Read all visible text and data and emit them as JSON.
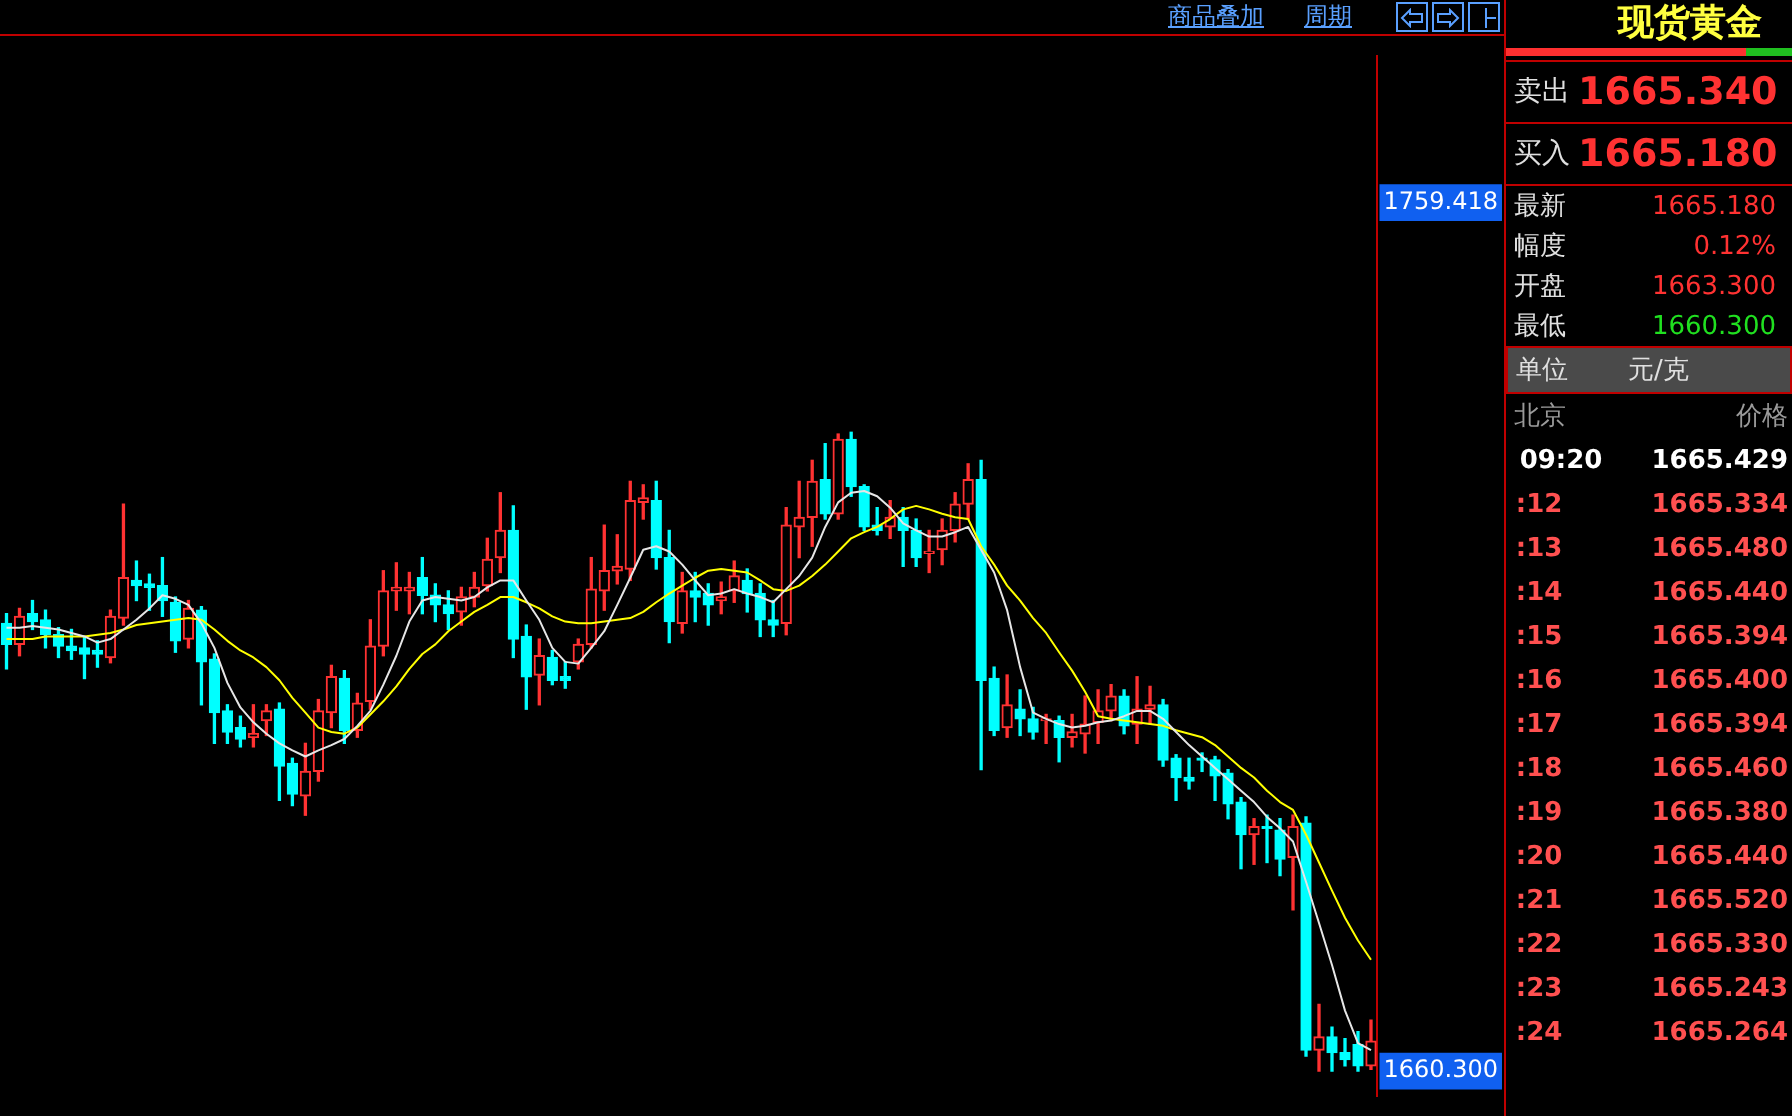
{
  "chart_data": [
    {
      "type": "candlestick",
      "marker": "none",
      "annotations": [
        "商品叠加",
        "周期"
      ],
      "categories": [
        null,
        null,
        null,
        null,
        null,
        null,
        null,
        null,
        null,
        null,
        null,
        null,
        null,
        null,
        null,
        null,
        null,
        null,
        null,
        null,
        null,
        null,
        null,
        null,
        null,
        null,
        null,
        null,
        null,
        null,
        null,
        null,
        null,
        null,
        null,
        null,
        null,
        null,
        null,
        null,
        null,
        null,
        null,
        null,
        null,
        null,
        null,
        null,
        null,
        null,
        null,
        null,
        null,
        null,
        null,
        null,
        null,
        null,
        null,
        null,
        null,
        null,
        null,
        null,
        null,
        null,
        null,
        null,
        null,
        null,
        null,
        null,
        null,
        null,
        null,
        null,
        null,
        null,
        null,
        null,
        null,
        null,
        null,
        null,
        null,
        null,
        null,
        null,
        null,
        null,
        null,
        null,
        null,
        null,
        null,
        null,
        null,
        null,
        null,
        null,
        null,
        null,
        null,
        null,
        null,
        null
      ],
      "ohlc": [
        [
          1711.4,
          1712.5,
          1706.2,
          1709.0
        ],
        [
          1709.0,
          1713.1,
          1707.7,
          1712.2
        ],
        [
          1712.5,
          1714.0,
          1710.7,
          1711.6
        ],
        [
          1711.8,
          1712.9,
          1708.6,
          1710.1
        ],
        [
          1710.1,
          1710.9,
          1707.5,
          1708.8
        ],
        [
          1708.8,
          1710.7,
          1707.3,
          1708.3
        ],
        [
          1708.6,
          1709.9,
          1705.1,
          1707.9
        ],
        [
          1708.3,
          1709.4,
          1706.4,
          1707.9
        ],
        [
          1707.5,
          1712.9,
          1706.9,
          1712.2
        ],
        [
          1712.0,
          1725.0,
          1711.2,
          1716.6
        ],
        [
          1716.3,
          1718.5,
          1714.0,
          1715.7
        ],
        [
          1715.9,
          1717.0,
          1712.9,
          1715.5
        ],
        [
          1715.7,
          1718.9,
          1712.2,
          1714.0
        ],
        [
          1713.8,
          1714.4,
          1708.1,
          1709.4
        ],
        [
          1709.6,
          1714.0,
          1708.6,
          1713.1
        ],
        [
          1712.9,
          1713.3,
          1702.1,
          1707.0
        ],
        [
          1707.3,
          1707.9,
          1697.7,
          1701.2
        ],
        [
          1701.4,
          1702.1,
          1697.7,
          1699.0
        ],
        [
          1699.5,
          1700.8,
          1697.3,
          1698.2
        ],
        [
          1698.4,
          1702.1,
          1697.3,
          1698.8
        ],
        [
          1700.3,
          1702.1,
          1698.6,
          1701.4
        ],
        [
          1701.6,
          1702.3,
          1691.2,
          1695.1
        ],
        [
          1695.4,
          1696.0,
          1690.6,
          1691.9
        ],
        [
          1691.7,
          1697.7,
          1689.5,
          1694.5
        ],
        [
          1694.5,
          1702.7,
          1693.4,
          1701.4
        ],
        [
          1701.2,
          1706.6,
          1699.5,
          1705.3
        ],
        [
          1705.1,
          1706.0,
          1697.7,
          1699.2
        ],
        [
          1699.2,
          1703.4,
          1698.4,
          1702.3
        ],
        [
          1702.5,
          1711.8,
          1701.6,
          1708.8
        ],
        [
          1708.8,
          1717.4,
          1707.7,
          1715.1
        ],
        [
          1715.1,
          1718.3,
          1712.9,
          1715.5
        ],
        [
          1715.1,
          1717.2,
          1712.5,
          1715.5
        ],
        [
          1716.6,
          1718.9,
          1712.5,
          1714.6
        ],
        [
          1714.6,
          1715.9,
          1711.6,
          1713.5
        ],
        [
          1713.5,
          1715.1,
          1710.7,
          1712.5
        ],
        [
          1712.7,
          1715.5,
          1711.2,
          1714.4
        ],
        [
          1714.4,
          1717.2,
          1713.3,
          1715.5
        ],
        [
          1715.7,
          1721.1,
          1715.1,
          1718.7
        ],
        [
          1718.9,
          1726.3,
          1717.2,
          1722.0
        ],
        [
          1722.0,
          1724.8,
          1707.5,
          1709.6
        ],
        [
          1709.9,
          1711.2,
          1701.6,
          1705.3
        ],
        [
          1705.5,
          1709.6,
          1702.1,
          1707.7
        ],
        [
          1707.5,
          1708.3,
          1704.4,
          1704.9
        ],
        [
          1705.3,
          1707.0,
          1704.0,
          1704.9
        ],
        [
          1707.0,
          1709.6,
          1706.2,
          1709.0
        ],
        [
          1709.0,
          1718.9,
          1708.6,
          1715.3
        ],
        [
          1715.1,
          1722.6,
          1712.9,
          1717.4
        ],
        [
          1717.4,
          1721.5,
          1715.9,
          1717.9
        ],
        [
          1717.6,
          1727.6,
          1716.3,
          1725.4
        ],
        [
          1725.2,
          1727.2,
          1723.3,
          1725.7
        ],
        [
          1725.4,
          1727.6,
          1717.6,
          1718.9
        ],
        [
          1718.9,
          1722.0,
          1709.2,
          1711.6
        ],
        [
          1711.4,
          1717.2,
          1710.3,
          1715.1
        ],
        [
          1715.1,
          1717.2,
          1711.6,
          1714.4
        ],
        [
          1714.8,
          1715.9,
          1711.2,
          1713.5
        ],
        [
          1714.0,
          1716.1,
          1712.5,
          1714.4
        ],
        [
          1715.1,
          1718.5,
          1713.8,
          1716.8
        ],
        [
          1716.3,
          1717.6,
          1712.7,
          1714.8
        ],
        [
          1714.8,
          1715.9,
          1709.9,
          1711.8
        ],
        [
          1711.8,
          1714.0,
          1709.9,
          1711.2
        ],
        [
          1711.4,
          1724.6,
          1710.1,
          1722.6
        ],
        [
          1722.4,
          1727.6,
          1718.9,
          1723.5
        ],
        [
          1723.5,
          1730.0,
          1720.2,
          1727.6
        ],
        [
          1727.8,
          1731.9,
          1723.3,
          1723.9
        ],
        [
          1723.9,
          1733.0,
          1723.3,
          1732.4
        ],
        [
          1732.4,
          1733.2,
          1725.9,
          1727.0
        ],
        [
          1727.0,
          1727.2,
          1722.0,
          1722.4
        ],
        [
          1722.6,
          1724.6,
          1721.5,
          1722.0
        ],
        [
          1722.4,
          1725.4,
          1721.1,
          1723.5
        ],
        [
          1723.5,
          1724.6,
          1717.9,
          1722.0
        ],
        [
          1722.0,
          1723.3,
          1717.9,
          1718.9
        ],
        [
          1719.4,
          1722.0,
          1717.2,
          1719.6
        ],
        [
          1719.8,
          1723.3,
          1718.1,
          1722.0
        ],
        [
          1722.0,
          1726.3,
          1720.7,
          1725.0
        ],
        [
          1725.0,
          1729.6,
          1723.3,
          1727.8
        ],
        [
          1727.8,
          1730.0,
          1694.7,
          1704.9
        ],
        [
          1705.1,
          1706.4,
          1698.6,
          1699.2
        ],
        [
          1699.5,
          1705.5,
          1698.4,
          1702.1
        ],
        [
          1701.6,
          1703.8,
          1698.6,
          1700.5
        ],
        [
          1700.5,
          1701.8,
          1698.2,
          1699.0
        ],
        [
          1700.3,
          1701.0,
          1697.7,
          1700.5
        ],
        [
          1700.3,
          1700.8,
          1695.6,
          1698.4
        ],
        [
          1698.4,
          1701.0,
          1697.3,
          1699.0
        ],
        [
          1698.8,
          1703.1,
          1696.6,
          1699.9
        ],
        [
          1700.1,
          1703.8,
          1697.7,
          1701.4
        ],
        [
          1701.4,
          1704.4,
          1700.3,
          1703.1
        ],
        [
          1703.1,
          1703.8,
          1698.8,
          1699.7
        ],
        [
          1699.9,
          1705.3,
          1697.7,
          1701.6
        ],
        [
          1701.6,
          1704.2,
          1699.9,
          1702.1
        ],
        [
          1702.1,
          1702.7,
          1695.1,
          1695.8
        ],
        [
          1696.0,
          1696.4,
          1691.2,
          1693.8
        ],
        [
          1693.8,
          1696.0,
          1692.5,
          1693.4
        ],
        [
          1696.0,
          1696.6,
          1694.5,
          1695.8
        ],
        [
          1695.8,
          1696.2,
          1691.2,
          1694.0
        ],
        [
          1694.3,
          1694.7,
          1689.1,
          1690.8
        ],
        [
          1691.0,
          1691.5,
          1683.4,
          1687.3
        ],
        [
          1687.3,
          1689.1,
          1683.9,
          1688.2
        ],
        [
          1688.2,
          1689.5,
          1684.1,
          1688.0
        ],
        [
          1687.8,
          1689.1,
          1682.6,
          1684.5
        ],
        [
          1684.7,
          1689.5,
          1678.7,
          1688.2
        ],
        [
          1688.6,
          1689.3,
          1662.0,
          1662.7
        ],
        [
          1662.7,
          1667.9,
          1660.3,
          1664.2
        ],
        [
          1664.2,
          1665.3,
          1660.3,
          1662.4
        ],
        [
          1662.4,
          1664.0,
          1660.9,
          1661.6
        ],
        [
          1663.3,
          1664.8,
          1660.3,
          1660.9
        ],
        [
          1660.9,
          1666.1,
          1660.5,
          1663.7
        ]
      ],
      "colors": [
        "#00ffff",
        "#ff3232",
        "#00ffff",
        "#00ffff",
        "#00ffff",
        "#00ffff",
        "#00ffff",
        "#00ffff",
        "#ff3232",
        "#ff3232",
        "#00ffff",
        "#00ffff",
        "#00ffff",
        "#00ffff",
        "#ff3232",
        "#00ffff",
        "#00ffff",
        "#00ffff",
        "#00ffff",
        "#ff3232",
        "#ff3232",
        "#00ffff",
        "#00ffff",
        "#ff3232",
        "#ff3232",
        "#ff3232",
        "#00ffff",
        "#ff3232",
        "#ff3232",
        "#ff3232",
        "#ff3232",
        "#ff3232",
        "#00ffff",
        "#00ffff",
        "#00ffff",
        "#ff3232",
        "#ff3232",
        "#ff3232",
        "#ff3232",
        "#00ffff",
        "#00ffff",
        "#ff3232",
        "#00ffff",
        "#00ffff",
        "#ff3232",
        "#ff3232",
        "#ff3232",
        "#ff3232",
        "#ff3232",
        "#ff3232",
        "#00ffff",
        "#00ffff",
        "#ff3232",
        "#00ffff",
        "#00ffff",
        "#ff3232",
        "#ff3232",
        "#00ffff",
        "#00ffff",
        "#00ffff",
        "#ff3232",
        "#ff3232",
        "#ff3232",
        "#00ffff",
        "#ff3232",
        "#00ffff",
        "#00ffff",
        "#00ffff",
        "#ff3232",
        "#00ffff",
        "#00ffff",
        "#ff3232",
        "#ff3232",
        "#ff3232",
        "#ff3232",
        "#00ffff",
        "#00ffff",
        "#ff3232",
        "#00ffff",
        "#00ffff",
        "#ff3232",
        "#00ffff",
        "#ff3232",
        "#ff3232",
        "#ff3232",
        "#ff3232",
        "#00ffff",
        "#ff3232",
        "#ff3232",
        "#00ffff",
        "#00ffff",
        "#00ffff",
        "#00ffff",
        "#00ffff",
        "#00ffff",
        "#00ffff",
        "#ff3232",
        "#00ffff",
        "#00ffff",
        "#ff3232",
        "#00ffff",
        "#ff3232",
        "#00ffff",
        "#00ffff",
        "#00ffff",
        "#ff3232"
      ],
      "series": [
        {
          "type": "line",
          "color": "#e6e6e6",
          "values": [
            1710.9,
            1710.9,
            1711.1,
            1710.9,
            1710.7,
            1710.3,
            1709.9,
            1709.2,
            1709.6,
            1710.7,
            1711.8,
            1713.1,
            1714.6,
            1714.2,
            1713.5,
            1711.4,
            1708.6,
            1704.6,
            1701.8,
            1700.1,
            1698.8,
            1697.7,
            1696.9,
            1696.2,
            1696.9,
            1697.5,
            1698.2,
            1699.7,
            1701.4,
            1704.4,
            1707.7,
            1711.6,
            1714.0,
            1714.4,
            1714.2,
            1714.0,
            1714.4,
            1715.5,
            1716.3,
            1716.3,
            1714.0,
            1711.8,
            1708.6,
            1707.0,
            1706.8,
            1708.6,
            1710.5,
            1713.5,
            1716.6,
            1719.8,
            1720.2,
            1719.6,
            1718.1,
            1716.3,
            1714.6,
            1714.8,
            1715.3,
            1714.8,
            1714.4,
            1713.8,
            1715.3,
            1716.8,
            1718.9,
            1722.4,
            1725.2,
            1726.3,
            1726.5,
            1725.9,
            1724.6,
            1722.8,
            1722.0,
            1721.3,
            1721.3,
            1721.8,
            1722.4,
            1719.8,
            1717.2,
            1712.9,
            1706.4,
            1701.2,
            1700.5,
            1699.9,
            1699.5,
            1699.7,
            1700.1,
            1700.3,
            1700.8,
            1701.4,
            1701.4,
            1700.5,
            1699.0,
            1697.5,
            1696.2,
            1694.9,
            1693.6,
            1692.3,
            1691.0,
            1689.3,
            1688.0,
            1686.5,
            1681.9,
            1677.2,
            1672.4,
            1667.2,
            1663.5,
            1662.7
          ]
        },
        {
          "type": "line",
          "color": "#ffff00",
          "values": [
            1709.6,
            1709.6,
            1709.6,
            1709.9,
            1709.9,
            1709.9,
            1709.9,
            1710.1,
            1710.3,
            1710.7,
            1711.2,
            1711.4,
            1711.6,
            1711.8,
            1712.0,
            1711.8,
            1710.7,
            1709.4,
            1708.3,
            1707.5,
            1706.4,
            1704.9,
            1702.9,
            1701.2,
            1699.5,
            1699.0,
            1698.8,
            1699.5,
            1701.0,
            1702.5,
            1704.2,
            1706.2,
            1707.9,
            1709.0,
            1710.5,
            1711.6,
            1712.7,
            1713.5,
            1714.4,
            1714.4,
            1713.8,
            1713.1,
            1712.2,
            1711.6,
            1711.4,
            1711.4,
            1711.6,
            1711.8,
            1712.0,
            1712.7,
            1713.8,
            1714.8,
            1715.7,
            1716.6,
            1717.4,
            1717.6,
            1717.4,
            1717.2,
            1716.3,
            1715.3,
            1715.1,
            1715.7,
            1716.8,
            1718.1,
            1719.6,
            1721.1,
            1721.8,
            1722.4,
            1723.3,
            1724.4,
            1724.8,
            1724.4,
            1723.9,
            1723.5,
            1723.3,
            1720.2,
            1718.1,
            1715.7,
            1714.0,
            1712.0,
            1710.3,
            1708.1,
            1706.0,
            1703.6,
            1700.8,
            1700.5,
            1700.3,
            1700.1,
            1699.9,
            1699.7,
            1699.2,
            1698.8,
            1698.4,
            1697.5,
            1696.2,
            1694.9,
            1693.8,
            1692.3,
            1691.0,
            1690.1,
            1687.3,
            1684.1,
            1680.9,
            1677.8,
            1675.2,
            1673.0
          ]
        }
      ],
      "ylim": [
        1657.5,
        1776.1
      ],
      "yticks": [
        {
          "value": 1660.3,
          "label": "1660.300"
        },
        1759.418
      ]
    },
    {
      "type": "other",
      "title": "现货黄金",
      "annotations": [
        "卖出",
        "1665.340",
        "买入",
        "1665.180",
        "最新",
        "1665.180",
        "幅度",
        "0.12%",
        "开盘",
        "1663.300",
        "最低",
        "1660.300",
        "单位",
        "元/克",
        "北京",
        "价格",
        "09:20 1665.429",
        ":12 1665.334",
        ":13 1665.480",
        ":14 1665.440",
        ":15 1665.394",
        ":16 1665.400",
        ":17 1665.394",
        ":18 1665.460",
        ":19 1665.380",
        ":20 1665.440",
        ":21 1665.520",
        ":22 1665.330",
        ":23 1665.243",
        ":24 1665.264"
      ]
    }
  ]
}
